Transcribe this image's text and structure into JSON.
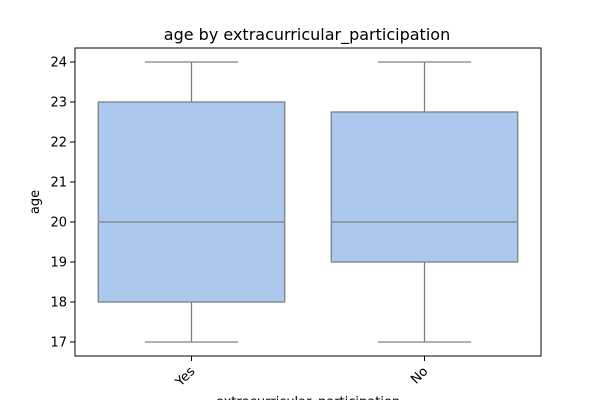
{
  "chart_data": {
    "type": "box",
    "title": "age by extracurricular_participation",
    "xlabel": "extracurricular_participation",
    "ylabel": "age",
    "categories": [
      "Yes",
      "No"
    ],
    "boxes": [
      {
        "category": "Yes",
        "whislo": 17,
        "q1": 18,
        "med": 20,
        "q3": 23,
        "whishi": 24
      },
      {
        "category": "No",
        "whislo": 17,
        "q1": 19,
        "med": 20,
        "q3": 22.75,
        "whishi": 24
      }
    ],
    "yticks": [
      17,
      18,
      19,
      20,
      21,
      22,
      23,
      24
    ],
    "ylim": [
      16.65,
      24.35
    ],
    "grid": false,
    "box_fill_color": "#abc9ee",
    "line_color": "#808080"
  }
}
